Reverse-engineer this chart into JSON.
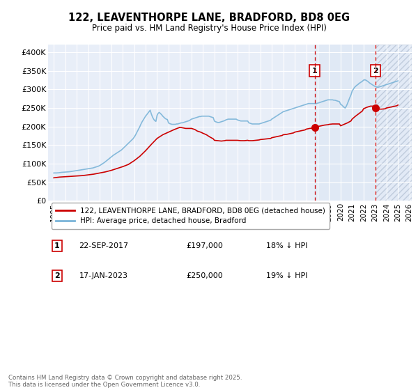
{
  "title": "122, LEAVENTHORPE LANE, BRADFORD, BD8 0EG",
  "subtitle": "Price paid vs. HM Land Registry's House Price Index (HPI)",
  "ylim": [
    0,
    420000
  ],
  "yticks": [
    0,
    50000,
    100000,
    150000,
    200000,
    250000,
    300000,
    350000,
    400000
  ],
  "ytick_labels": [
    "£0",
    "£50K",
    "£100K",
    "£150K",
    "£200K",
    "£250K",
    "£300K",
    "£350K",
    "£400K"
  ],
  "background_color": "#ffffff",
  "plot_bg_color": "#e8eef8",
  "grid_color": "#ffffff",
  "hpi_color": "#7ab4d8",
  "price_color": "#cc0000",
  "vline1_x": 2017.73,
  "vline2_x": 2023.05,
  "point1_price": 197000,
  "point2_price": 250000,
  "point1_date": "22-SEP-2017",
  "point2_date": "17-JAN-2023",
  "point1_hpi_pct": "18% ↓ HPI",
  "point2_hpi_pct": "19% ↓ HPI",
  "legend_label1": "122, LEAVENTHORPE LANE, BRADFORD, BD8 0EG (detached house)",
  "legend_label2": "HPI: Average price, detached house, Bradford",
  "footer": "Contains HM Land Registry data © Crown copyright and database right 2025.\nThis data is licensed under the Open Government Licence v3.0.",
  "xlim_start": 1994.5,
  "xlim_end": 2026.2,
  "xticks": [
    1995,
    1996,
    1997,
    1998,
    1999,
    2000,
    2001,
    2002,
    2003,
    2004,
    2005,
    2006,
    2007,
    2008,
    2009,
    2010,
    2011,
    2012,
    2013,
    2014,
    2015,
    2016,
    2017,
    2018,
    2019,
    2020,
    2021,
    2022,
    2023,
    2024,
    2025,
    2026
  ],
  "hpi_years": [
    1995.0,
    1995.1,
    1995.2,
    1995.3,
    1995.4,
    1995.5,
    1995.6,
    1995.7,
    1995.8,
    1995.9,
    1996.0,
    1996.1,
    1996.2,
    1996.3,
    1996.4,
    1996.5,
    1996.6,
    1996.7,
    1996.8,
    1996.9,
    1997.0,
    1997.1,
    1997.2,
    1997.3,
    1997.4,
    1997.5,
    1997.6,
    1997.7,
    1997.8,
    1997.9,
    1998.0,
    1998.1,
    1998.2,
    1998.3,
    1998.4,
    1998.5,
    1998.6,
    1998.7,
    1998.8,
    1998.9,
    1999.0,
    1999.1,
    1999.2,
    1999.3,
    1999.4,
    1999.5,
    1999.6,
    1999.7,
    1999.8,
    1999.9,
    2000.0,
    2000.1,
    2000.2,
    2000.3,
    2000.4,
    2000.5,
    2000.6,
    2000.7,
    2000.8,
    2000.9,
    2001.0,
    2001.1,
    2001.2,
    2001.3,
    2001.4,
    2001.5,
    2001.6,
    2001.7,
    2001.8,
    2001.9,
    2002.0,
    2002.1,
    2002.2,
    2002.3,
    2002.4,
    2002.5,
    2002.6,
    2002.7,
    2002.8,
    2002.9,
    2003.0,
    2003.1,
    2003.2,
    2003.3,
    2003.4,
    2003.5,
    2003.6,
    2003.7,
    2003.8,
    2003.9,
    2004.0,
    2004.1,
    2004.2,
    2004.3,
    2004.4,
    2004.5,
    2004.6,
    2004.7,
    2004.8,
    2004.9,
    2005.0,
    2005.1,
    2005.2,
    2005.3,
    2005.4,
    2005.5,
    2005.6,
    2005.7,
    2005.8,
    2005.9,
    2006.0,
    2006.1,
    2006.2,
    2006.3,
    2006.4,
    2006.5,
    2006.6,
    2006.7,
    2006.8,
    2006.9,
    2007.0,
    2007.1,
    2007.2,
    2007.3,
    2007.4,
    2007.5,
    2007.6,
    2007.7,
    2007.8,
    2007.9,
    2008.0,
    2008.1,
    2008.2,
    2008.3,
    2008.4,
    2008.5,
    2008.6,
    2008.7,
    2008.8,
    2008.9,
    2009.0,
    2009.1,
    2009.2,
    2009.3,
    2009.4,
    2009.5,
    2009.6,
    2009.7,
    2009.8,
    2009.9,
    2010.0,
    2010.1,
    2010.2,
    2010.3,
    2010.4,
    2010.5,
    2010.6,
    2010.7,
    2010.8,
    2010.9,
    2011.0,
    2011.1,
    2011.2,
    2011.3,
    2011.4,
    2011.5,
    2011.6,
    2011.7,
    2011.8,
    2011.9,
    2012.0,
    2012.1,
    2012.2,
    2012.3,
    2012.4,
    2012.5,
    2012.6,
    2012.7,
    2012.8,
    2012.9,
    2013.0,
    2013.1,
    2013.2,
    2013.3,
    2013.4,
    2013.5,
    2013.6,
    2013.7,
    2013.8,
    2013.9,
    2014.0,
    2014.1,
    2014.2,
    2014.3,
    2014.4,
    2014.5,
    2014.6,
    2014.7,
    2014.8,
    2014.9,
    2015.0,
    2015.1,
    2015.2,
    2015.3,
    2015.4,
    2015.5,
    2015.6,
    2015.7,
    2015.8,
    2015.9,
    2016.0,
    2016.1,
    2016.2,
    2016.3,
    2016.4,
    2016.5,
    2016.6,
    2016.7,
    2016.8,
    2016.9,
    2017.0,
    2017.1,
    2017.2,
    2017.3,
    2017.4,
    2017.5,
    2017.6,
    2017.7,
    2017.8,
    2017.9,
    2018.0,
    2018.1,
    2018.2,
    2018.3,
    2018.4,
    2018.5,
    2018.6,
    2018.7,
    2018.8,
    2018.9,
    2019.0,
    2019.1,
    2019.2,
    2019.3,
    2019.4,
    2019.5,
    2019.6,
    2019.7,
    2019.8,
    2019.9,
    2020.0,
    2020.1,
    2020.2,
    2020.3,
    2020.4,
    2020.5,
    2020.6,
    2020.7,
    2020.8,
    2020.9,
    2021.0,
    2021.1,
    2021.2,
    2021.3,
    2021.4,
    2021.5,
    2021.6,
    2021.7,
    2021.8,
    2021.9,
    2022.0,
    2022.1,
    2022.2,
    2022.3,
    2022.4,
    2022.5,
    2022.6,
    2022.7,
    2022.8,
    2022.9,
    2023.0,
    2023.1,
    2023.2,
    2023.3,
    2023.4,
    2023.5,
    2023.6,
    2023.7,
    2023.8,
    2023.9,
    2024.0,
    2024.1,
    2024.2,
    2024.3,
    2024.4,
    2024.5,
    2024.6,
    2024.7,
    2024.8,
    2024.9,
    2025.0
  ],
  "hpi_values": [
    75000,
    75200,
    75100,
    75300,
    75500,
    76000,
    76500,
    76800,
    77000,
    77200,
    77500,
    77800,
    78000,
    78200,
    78500,
    79000,
    79500,
    80000,
    80500,
    81000,
    81500,
    82000,
    82500,
    83000,
    83500,
    84000,
    84500,
    85000,
    85500,
    86000,
    86500,
    87000,
    87500,
    88000,
    88500,
    89500,
    90500,
    91500,
    92500,
    93500,
    95000,
    97000,
    99000,
    101000,
    103000,
    105500,
    108000,
    110500,
    113000,
    115500,
    118000,
    120500,
    123000,
    125000,
    127000,
    129000,
    131000,
    133000,
    135000,
    137000,
    140000,
    143000,
    146000,
    149000,
    152000,
    155000,
    158000,
    161000,
    164000,
    167000,
    171000,
    176000,
    182000,
    188000,
    194000,
    200000,
    207000,
    213000,
    218000,
    223000,
    228000,
    232000,
    236000,
    240000,
    244000,
    234000,
    226000,
    220000,
    216000,
    214000,
    230000,
    236000,
    238000,
    235000,
    232000,
    228000,
    225000,
    222000,
    220000,
    219000,
    210000,
    208000,
    207000,
    206000,
    206000,
    206000,
    206000,
    207000,
    207000,
    208000,
    209000,
    210000,
    210000,
    211000,
    212000,
    213000,
    214000,
    215000,
    216000,
    218000,
    220000,
    221000,
    222000,
    223000,
    224000,
    225000,
    226000,
    227000,
    227000,
    228000,
    228000,
    228000,
    228000,
    228000,
    228000,
    228000,
    227000,
    226000,
    225000,
    224000,
    215000,
    213000,
    212000,
    211000,
    211000,
    212000,
    213000,
    214000,
    215000,
    216000,
    218000,
    219000,
    220000,
    220000,
    220000,
    220000,
    220000,
    220000,
    220000,
    220000,
    218000,
    217000,
    216000,
    215000,
    215000,
    215000,
    215000,
    215000,
    215000,
    215000,
    210000,
    209000,
    208000,
    207000,
    207000,
    207000,
    207000,
    207000,
    207000,
    207000,
    208000,
    209000,
    210000,
    211000,
    212000,
    213000,
    214000,
    215000,
    216000,
    217000,
    220000,
    222000,
    224000,
    226000,
    228000,
    230000,
    232000,
    234000,
    236000,
    238000,
    240000,
    241000,
    242000,
    243000,
    244000,
    245000,
    246000,
    247000,
    248000,
    249000,
    250000,
    251000,
    252000,
    253000,
    254000,
    255000,
    256000,
    257000,
    258000,
    259000,
    260000,
    261000,
    262000,
    262000,
    262000,
    262000,
    262000,
    262000,
    262000,
    262000,
    263000,
    264000,
    265000,
    266000,
    267000,
    268000,
    269000,
    270000,
    271000,
    272000,
    272000,
    272000,
    272000,
    272000,
    271000,
    271000,
    270000,
    269000,
    268000,
    267000,
    260000,
    258000,
    255000,
    252000,
    250000,
    255000,
    262000,
    270000,
    278000,
    285000,
    295000,
    300000,
    305000,
    308000,
    311000,
    313000,
    316000,
    318000,
    320000,
    322000,
    325000,
    326000,
    325000,
    323000,
    321000,
    318000,
    316000,
    314000,
    312000,
    310000,
    308000,
    307000,
    306000,
    306000,
    307000,
    308000,
    309000,
    310000,
    311000,
    312000,
    313000,
    314000,
    315000,
    316000,
    317000,
    318000,
    319000,
    320000,
    321000,
    322000,
    323000
  ],
  "price_years": [
    1995.0,
    1995.5,
    1996.0,
    1996.5,
    1997.0,
    1997.5,
    1998.0,
    1998.5,
    1999.0,
    1999.5,
    2000.0,
    2000.5,
    2001.0,
    2001.5,
    2002.0,
    2002.5,
    2003.0,
    2003.5,
    2004.0,
    2004.5,
    2005.0,
    2005.5,
    2006.0,
    2006.5,
    2007.0,
    2007.3,
    2007.5,
    2007.8,
    2008.0,
    2008.3,
    2008.6,
    2008.9,
    2009.0,
    2009.3,
    2009.6,
    2009.9,
    2010.0,
    2010.3,
    2010.6,
    2010.9,
    2011.0,
    2011.3,
    2011.6,
    2011.9,
    2012.0,
    2012.3,
    2012.6,
    2012.9,
    2013.0,
    2013.3,
    2013.6,
    2013.9,
    2014.0,
    2014.3,
    2014.6,
    2014.9,
    2015.0,
    2015.3,
    2015.6,
    2015.9,
    2016.0,
    2016.3,
    2016.6,
    2016.9,
    2017.0,
    2017.3,
    2017.6,
    2017.73,
    2017.9,
    2018.0,
    2018.3,
    2018.6,
    2018.9,
    2019.0,
    2019.3,
    2019.6,
    2019.9,
    2020.0,
    2020.3,
    2020.6,
    2020.9,
    2021.0,
    2021.3,
    2021.6,
    2021.9,
    2022.0,
    2022.3,
    2022.6,
    2022.9,
    2023.0,
    2023.05,
    2023.3,
    2023.6,
    2023.9,
    2024.0,
    2024.3,
    2024.6,
    2024.9,
    2025.0
  ],
  "price_values": [
    62000,
    64000,
    65000,
    66000,
    67000,
    68000,
    70000,
    72000,
    75000,
    78000,
    82000,
    87000,
    92000,
    98000,
    108000,
    120000,
    135000,
    152000,
    168000,
    178000,
    185000,
    192000,
    198000,
    195000,
    195000,
    192000,
    188000,
    185000,
    182000,
    178000,
    172000,
    167000,
    163000,
    162000,
    161000,
    162000,
    163000,
    163000,
    163000,
    163000,
    163000,
    162000,
    162000,
    163000,
    162000,
    162000,
    163000,
    164000,
    165000,
    166000,
    167000,
    168000,
    170000,
    172000,
    174000,
    176000,
    178000,
    179000,
    181000,
    183000,
    185000,
    187000,
    189000,
    191000,
    193000,
    195000,
    196000,
    197000,
    199000,
    200000,
    202000,
    204000,
    205000,
    206000,
    207000,
    207000,
    207000,
    202000,
    206000,
    210000,
    215000,
    220000,
    228000,
    235000,
    242000,
    248000,
    252000,
    255000,
    255000,
    252000,
    250000,
    247000,
    247000,
    248000,
    250000,
    252000,
    254000,
    256000,
    258000
  ]
}
